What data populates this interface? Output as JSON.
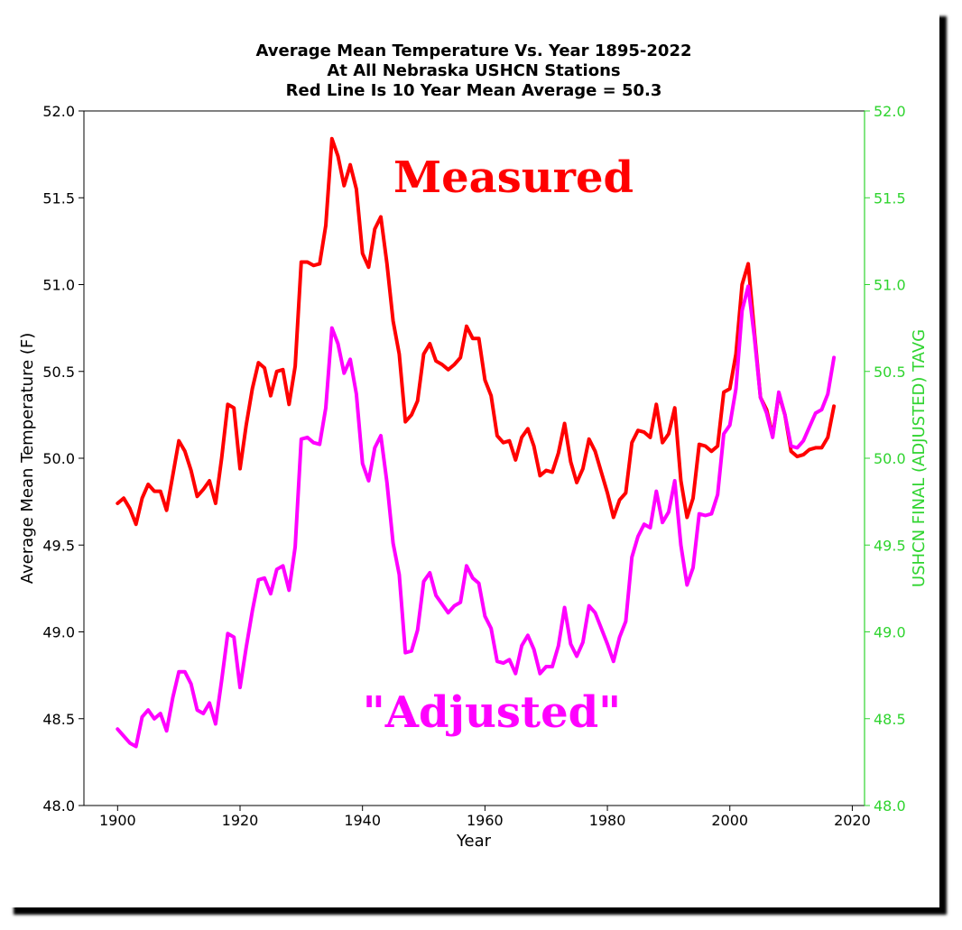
{
  "chart_data": {
    "type": "line",
    "title": [
      "Average Mean Temperature Vs. Year 1895-2022",
      "At All Nebraska USHCN Stations",
      "Red Line Is 10 Year Mean  Average = 50.3"
    ],
    "xlabel": "Year",
    "ylabel": "Average Mean Temperature (F)",
    "ylabel_right": "USHCN FINAL (ADJUSTED) TAVG",
    "xlim": [
      1894.5,
      2022
    ],
    "ylim": [
      48.0,
      52.0
    ],
    "ylim_right": [
      48.0,
      52.0
    ],
    "x_ticks": [
      "1900",
      "1920",
      "1940",
      "1960",
      "1980",
      "2000",
      "2020"
    ],
    "y_ticks": [
      "48.0",
      "48.5",
      "49.0",
      "49.5",
      "50.0",
      "50.5",
      "51.0",
      "51.5",
      "52.0"
    ],
    "y_ticks_right": [
      "48.0",
      "48.5",
      "49.0",
      "49.5",
      "50.0",
      "50.5",
      "51.0",
      "51.5",
      "52.0"
    ],
    "grid": false,
    "annotations": [
      {
        "text": "Measured",
        "color": "#ff0000"
      },
      {
        "text": "\"Adjusted\"",
        "color": "#ff00ff"
      }
    ],
    "x": [
      1900,
      1901,
      1902,
      1903,
      1904,
      1905,
      1906,
      1907,
      1908,
      1909,
      1910,
      1911,
      1912,
      1913,
      1914,
      1915,
      1916,
      1917,
      1918,
      1919,
      1920,
      1921,
      1922,
      1923,
      1924,
      1925,
      1926,
      1927,
      1928,
      1929,
      1930,
      1931,
      1932,
      1933,
      1934,
      1935,
      1936,
      1937,
      1938,
      1939,
      1940,
      1941,
      1942,
      1943,
      1944,
      1945,
      1946,
      1947,
      1948,
      1949,
      1950,
      1951,
      1952,
      1953,
      1954,
      1955,
      1956,
      1957,
      1958,
      1959,
      1960,
      1961,
      1962,
      1963,
      1964,
      1965,
      1966,
      1967,
      1968,
      1969,
      1970,
      1971,
      1972,
      1973,
      1974,
      1975,
      1976,
      1977,
      1978,
      1979,
      1980,
      1981,
      1982,
      1983,
      1984,
      1985,
      1986,
      1987,
      1988,
      1989,
      1990,
      1991,
      1992,
      1993,
      1994,
      1995,
      1996,
      1997,
      1998,
      1999,
      2000,
      2001,
      2002,
      2003,
      2004,
      2005,
      2006,
      2007,
      2008,
      2009,
      2010,
      2011,
      2012,
      2013,
      2014,
      2015,
      2016,
      2017
    ],
    "series": [
      {
        "color": "#ff0000",
        "values": [
          49.74,
          49.77,
          49.71,
          49.62,
          49.77,
          49.85,
          49.81,
          49.81,
          49.7,
          49.9,
          50.1,
          50.04,
          49.93,
          49.78,
          49.82,
          49.87,
          49.74,
          50.0,
          50.31,
          50.29,
          49.94,
          50.19,
          50.4,
          50.55,
          50.52,
          50.36,
          50.5,
          50.51,
          50.31,
          50.53,
          51.13,
          51.13,
          51.11,
          51.12,
          51.34,
          51.84,
          51.74,
          51.57,
          51.69,
          51.55,
          51.18,
          51.1,
          51.32,
          51.39,
          51.12,
          50.79,
          50.6,
          50.21,
          50.25,
          50.33,
          50.6,
          50.66,
          50.56,
          50.54,
          50.51,
          50.54,
          50.58,
          50.76,
          50.69,
          50.69,
          50.45,
          50.36,
          50.13,
          50.09,
          50.1,
          49.99,
          50.12,
          50.17,
          50.07,
          49.9,
          49.93,
          49.92,
          50.03,
          50.2,
          49.98,
          49.86,
          49.94,
          50.11,
          50.04,
          49.92,
          49.8,
          49.66,
          49.76,
          49.8,
          50.09,
          50.16,
          50.15,
          50.12,
          50.31,
          50.09,
          50.14,
          50.29,
          49.87,
          49.66,
          49.77,
          50.08,
          50.07,
          50.04,
          50.07,
          50.38,
          50.4,
          50.6,
          51.0,
          51.12,
          50.73,
          50.35,
          50.28,
          50.13,
          50.37,
          50.25,
          50.04,
          50.01,
          50.02,
          50.05,
          50.06,
          50.06,
          50.12,
          50.3
        ]
      },
      {
        "color": "#ff00ff",
        "values": [
          48.44,
          48.4,
          48.36,
          48.34,
          48.51,
          48.55,
          48.5,
          48.53,
          48.43,
          48.62,
          48.77,
          48.77,
          48.7,
          48.55,
          48.53,
          48.59,
          48.47,
          48.72,
          48.99,
          48.97,
          48.68,
          48.91,
          49.12,
          49.3,
          49.31,
          49.22,
          49.36,
          49.38,
          49.24,
          49.49,
          50.11,
          50.12,
          50.09,
          50.08,
          50.29,
          50.75,
          50.66,
          50.49,
          50.57,
          50.37,
          49.97,
          49.87,
          50.06,
          50.13,
          49.86,
          49.51,
          49.33,
          48.88,
          48.89,
          49.01,
          49.29,
          49.34,
          49.21,
          49.16,
          49.11,
          49.15,
          49.17,
          49.38,
          49.31,
          49.28,
          49.09,
          49.02,
          48.83,
          48.82,
          48.84,
          48.76,
          48.92,
          48.98,
          48.9,
          48.76,
          48.8,
          48.8,
          48.92,
          49.14,
          48.93,
          48.86,
          48.94,
          49.15,
          49.11,
          49.02,
          48.93,
          48.83,
          48.97,
          49.06,
          49.43,
          49.55,
          49.62,
          49.6,
          49.81,
          49.63,
          49.69,
          49.87,
          49.5,
          49.27,
          49.37,
          49.68,
          49.67,
          49.68,
          49.79,
          50.14,
          50.19,
          50.4,
          50.85,
          50.99,
          50.7,
          50.35,
          50.26,
          50.12,
          50.38,
          50.25,
          50.07,
          50.06,
          50.1,
          50.18,
          50.26,
          50.28,
          50.37,
          50.58
        ]
      }
    ]
  }
}
